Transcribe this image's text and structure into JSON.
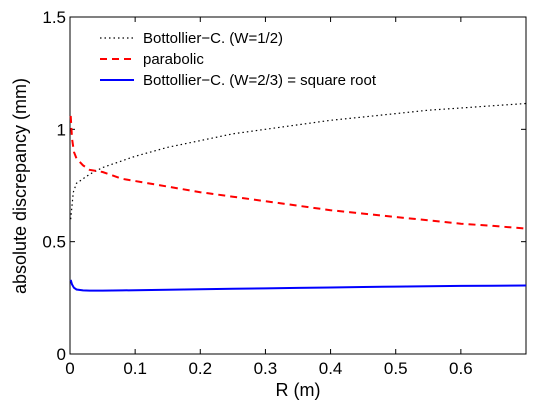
{
  "chart_data": {
    "type": "line",
    "xlabel": "R (m)",
    "ylabel": "absolute discrepancy (mm)",
    "xlim": [
      0,
      0.7
    ],
    "ylim": [
      0,
      1.5
    ],
    "xticks": [
      0,
      0.1,
      0.2,
      0.3,
      0.4,
      0.5,
      0.6
    ],
    "xtick_labels": [
      "0",
      "0.1",
      "0.2",
      "0.3",
      "0.4",
      "0.5",
      "0.6"
    ],
    "yticks": [
      0,
      0.5,
      1,
      1.5
    ],
    "ytick_labels": [
      "0",
      "0.5",
      "1",
      "1.5"
    ],
    "grid": false,
    "legend_position": "top-left",
    "series": [
      {
        "name": "Bottollier−C. (W=1/2)",
        "color": "#000000",
        "style": "dotted",
        "x": [
          0.001,
          0.005,
          0.01,
          0.02,
          0.03,
          0.05,
          0.08,
          0.1,
          0.15,
          0.2,
          0.25,
          0.3,
          0.35,
          0.4,
          0.45,
          0.5,
          0.55,
          0.6,
          0.65,
          0.7
        ],
        "y": [
          0.6,
          0.72,
          0.76,
          0.78,
          0.8,
          0.83,
          0.86,
          0.88,
          0.92,
          0.95,
          0.98,
          1.0,
          1.02,
          1.04,
          1.055,
          1.07,
          1.085,
          1.095,
          1.105,
          1.115
        ]
      },
      {
        "name": "parabolic",
        "color": "#ff0000",
        "style": "dashed",
        "x": [
          0.001,
          0.003,
          0.006,
          0.01,
          0.02,
          0.03,
          0.05,
          0.08,
          0.1,
          0.15,
          0.2,
          0.25,
          0.3,
          0.35,
          0.4,
          0.45,
          0.5,
          0.55,
          0.6,
          0.65,
          0.7
        ],
        "y": [
          1.06,
          0.96,
          0.9,
          0.87,
          0.84,
          0.82,
          0.81,
          0.78,
          0.77,
          0.745,
          0.72,
          0.7,
          0.68,
          0.66,
          0.64,
          0.625,
          0.61,
          0.595,
          0.58,
          0.57,
          0.558
        ]
      },
      {
        "name": "Bottollier−C. (W=2/3) = square root",
        "color": "#0000ff",
        "style": "solid",
        "x": [
          0.001,
          0.003,
          0.006,
          0.01,
          0.02,
          0.03,
          0.05,
          0.08,
          0.1,
          0.15,
          0.2,
          0.25,
          0.3,
          0.35,
          0.4,
          0.45,
          0.5,
          0.55,
          0.6,
          0.65,
          0.7
        ],
        "y": [
          0.33,
          0.31,
          0.295,
          0.287,
          0.283,
          0.282,
          0.282,
          0.283,
          0.284,
          0.286,
          0.288,
          0.29,
          0.292,
          0.294,
          0.296,
          0.298,
          0.3,
          0.302,
          0.303,
          0.304,
          0.305
        ]
      }
    ]
  }
}
